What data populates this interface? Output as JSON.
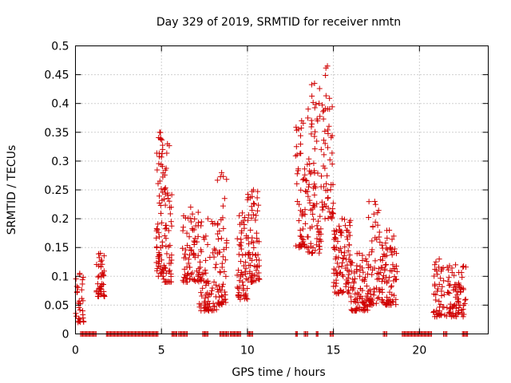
{
  "chart_data": {
    "type": "scatter",
    "title": "Day 329 of 2019, SRMTID for receiver nmtn",
    "xlabel": "GPS time / hours",
    "ylabel": "SRMTID / TECUs",
    "xlim": [
      0,
      24
    ],
    "ylim": [
      0,
      0.5
    ],
    "xticks": [
      0,
      5,
      10,
      15,
      20
    ],
    "xtick_labels": [
      "0",
      "5",
      "10",
      "15",
      "20"
    ],
    "yticks": [
      0,
      0.05,
      0.1,
      0.15,
      0.2,
      0.25,
      0.3,
      0.35,
      0.4,
      0.45,
      0.5
    ],
    "ytick_labels": [
      "0",
      "0.05",
      "0.1",
      "0.15",
      "0.2",
      "0.25",
      "0.3",
      "0.35",
      "0.4",
      "0.45",
      "0.5"
    ],
    "grid": true,
    "marker": "+",
    "color": "#d00000",
    "series": [
      {
        "name": "SRMTID",
        "clusters": [
          {
            "x0": 0.0,
            "x1": 0.5,
            "ymin": 0.02,
            "ymax": 0.105,
            "n": 30
          },
          {
            "x0": 1.2,
            "x1": 1.7,
            "ymin": 0.065,
            "ymax": 0.14,
            "n": 40
          },
          {
            "x0": 4.7,
            "x1": 5.1,
            "ymin": 0.1,
            "ymax": 0.35,
            "n": 60
          },
          {
            "x0": 5.1,
            "x1": 5.6,
            "ymin": 0.09,
            "ymax": 0.33,
            "n": 55
          },
          {
            "x0": 6.2,
            "x1": 7.2,
            "ymin": 0.09,
            "ymax": 0.22,
            "n": 70
          },
          {
            "x0": 7.2,
            "x1": 8.2,
            "ymin": 0.04,
            "ymax": 0.2,
            "n": 80
          },
          {
            "x0": 8.2,
            "x1": 8.8,
            "ymin": 0.05,
            "ymax": 0.28,
            "n": 55
          },
          {
            "x0": 9.4,
            "x1": 10.0,
            "ymin": 0.06,
            "ymax": 0.21,
            "n": 55
          },
          {
            "x0": 10.0,
            "x1": 10.7,
            "ymin": 0.09,
            "ymax": 0.25,
            "n": 70
          },
          {
            "x0": 12.8,
            "x1": 13.5,
            "ymin": 0.15,
            "ymax": 0.37,
            "n": 60
          },
          {
            "x0": 13.5,
            "x1": 14.3,
            "ymin": 0.14,
            "ymax": 0.435,
            "n": 80
          },
          {
            "x0": 14.3,
            "x1": 15.0,
            "ymin": 0.2,
            "ymax": 0.465,
            "n": 55
          },
          {
            "x0": 15.0,
            "x1": 16.0,
            "ymin": 0.07,
            "ymax": 0.2,
            "n": 90
          },
          {
            "x0": 16.0,
            "x1": 17.0,
            "ymin": 0.04,
            "ymax": 0.14,
            "n": 80
          },
          {
            "x0": 17.0,
            "x1": 17.8,
            "ymin": 0.05,
            "ymax": 0.23,
            "n": 60
          },
          {
            "x0": 17.8,
            "x1": 18.7,
            "ymin": 0.05,
            "ymax": 0.18,
            "n": 75
          },
          {
            "x0": 20.8,
            "x1": 21.5,
            "ymin": 0.03,
            "ymax": 0.13,
            "n": 45
          },
          {
            "x0": 21.5,
            "x1": 22.7,
            "ymin": 0.03,
            "ymax": 0.12,
            "n": 80
          }
        ],
        "zero_segments": [
          [
            0.3,
            1.2
          ],
          [
            1.8,
            4.8
          ],
          [
            5.6,
            5.9
          ],
          [
            6.0,
            6.5
          ],
          [
            7.4,
            7.7
          ],
          [
            8.4,
            8.9
          ],
          [
            9.0,
            9.6
          ],
          [
            10.0,
            10.3
          ],
          [
            12.8,
            12.9
          ],
          [
            13.3,
            13.5
          ],
          [
            14.0,
            14.1
          ],
          [
            14.8,
            15.0
          ],
          [
            17.9,
            18.1
          ],
          [
            19.0,
            20.7
          ],
          [
            21.4,
            21.6
          ],
          [
            22.5,
            22.8
          ]
        ]
      }
    ]
  }
}
